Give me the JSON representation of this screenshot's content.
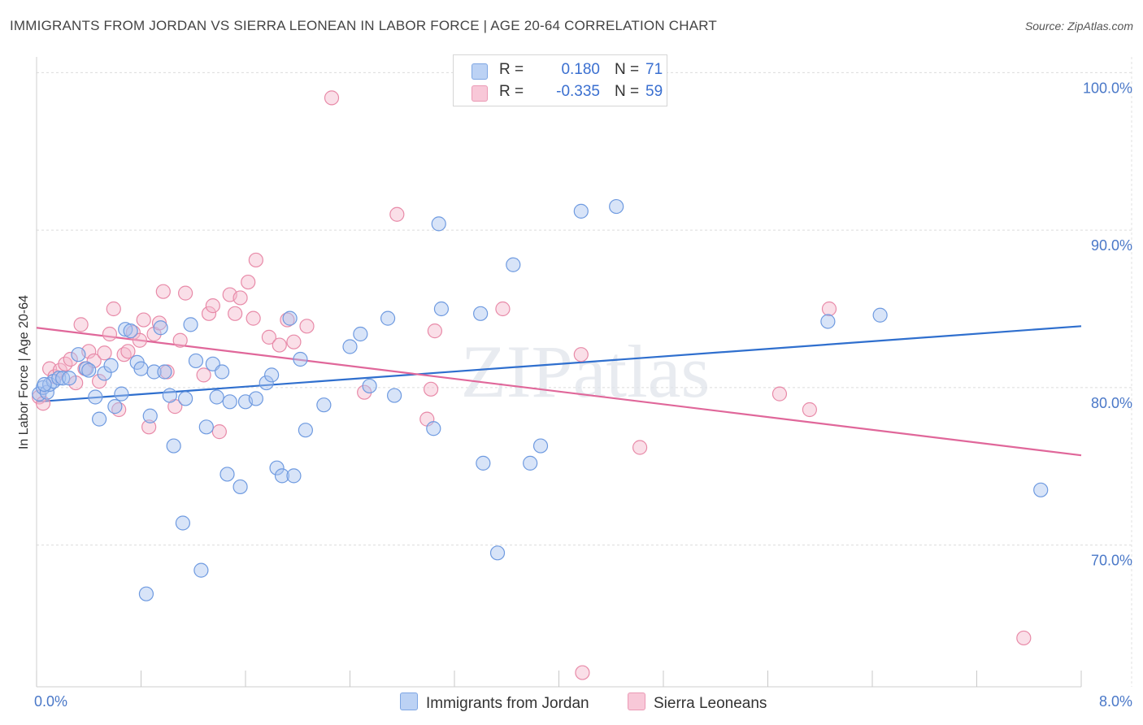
{
  "title": "IMMIGRANTS FROM JORDAN VS SIERRA LEONEAN IN LABOR FORCE | AGE 20-64 CORRELATION CHART",
  "source": "Source: ZipAtlas.com",
  "watermark": "ZIPatlas",
  "colors": {
    "blue_fill": "#a9c4ef",
    "blue_stroke": "#6e9ae0",
    "blue_line": "#2f6fce",
    "pink_fill": "#f5b8cc",
    "pink_stroke": "#e88aa8",
    "pink_line": "#e0679a",
    "tick_label": "#4a78c8"
  },
  "legend": {
    "rows": [
      {
        "r_label": "R =",
        "r_value": "0.180",
        "n_label": "N =",
        "n_value": "71"
      },
      {
        "r_label": "R =",
        "r_value": "-0.335",
        "n_label": "N =",
        "n_value": "59"
      }
    ]
  },
  "bottom_legend": {
    "series1": "Immigrants from Jordan",
    "series2": "Sierra Leoneans"
  },
  "chart_data": {
    "type": "scatter",
    "title": "IMMIGRANTS FROM JORDAN VS SIERRA LEONEAN IN LABOR FORCE | AGE 20-64 CORRELATION CHART",
    "xlabel": "",
    "ylabel": "In Labor Force | Age 20-64",
    "xlim": [
      0,
      8
    ],
    "ylim": [
      61,
      101
    ],
    "x_tick_labels": [
      "0.0%",
      "8.0%"
    ],
    "y_ticks": [
      70,
      80,
      90,
      100
    ],
    "y_tick_labels": [
      "70.0%",
      "80.0%",
      "90.0%",
      "100.0%"
    ],
    "grid": true,
    "legend_position": "top-center",
    "series": [
      {
        "name": "Immigrants from Jordan",
        "color": "#a9c4ef",
        "r": 0.18,
        "n": 71,
        "trend": {
          "x": [
            0,
            8
          ],
          "y": [
            79.1,
            83.9
          ]
        },
        "points": [
          {
            "x": 0.02,
            "y": 79.6
          },
          {
            "x": 0.05,
            "y": 80.0
          },
          {
            "x": 0.08,
            "y": 79.7
          },
          {
            "x": 0.1,
            "y": 80.2
          },
          {
            "x": 0.13,
            "y": 80.4
          },
          {
            "x": 0.17,
            "y": 80.6
          },
          {
            "x": 0.2,
            "y": 80.6
          },
          {
            "x": 0.25,
            "y": 80.6
          },
          {
            "x": 0.32,
            "y": 82.1
          },
          {
            "x": 0.38,
            "y": 81.2
          },
          {
            "x": 0.4,
            "y": 81.1
          },
          {
            "x": 0.45,
            "y": 79.4
          },
          {
            "x": 0.48,
            "y": 78.0
          },
          {
            "x": 0.52,
            "y": 80.9
          },
          {
            "x": 0.57,
            "y": 81.4
          },
          {
            "x": 0.6,
            "y": 78.8
          },
          {
            "x": 0.65,
            "y": 79.6
          },
          {
            "x": 0.68,
            "y": 83.7
          },
          {
            "x": 0.72,
            "y": 83.6
          },
          {
            "x": 0.77,
            "y": 81.6
          },
          {
            "x": 0.8,
            "y": 81.2
          },
          {
            "x": 0.84,
            "y": 66.9
          },
          {
            "x": 0.87,
            "y": 78.2
          },
          {
            "x": 0.9,
            "y": 81.0
          },
          {
            "x": 0.95,
            "y": 83.8
          },
          {
            "x": 0.98,
            "y": 81.0
          },
          {
            "x": 1.02,
            "y": 79.5
          },
          {
            "x": 1.05,
            "y": 76.3
          },
          {
            "x": 1.12,
            "y": 71.4
          },
          {
            "x": 1.14,
            "y": 79.3
          },
          {
            "x": 1.18,
            "y": 84.0
          },
          {
            "x": 1.22,
            "y": 81.7
          },
          {
            "x": 1.26,
            "y": 68.4
          },
          {
            "x": 1.3,
            "y": 77.5
          },
          {
            "x": 1.35,
            "y": 81.5
          },
          {
            "x": 1.38,
            "y": 79.4
          },
          {
            "x": 1.42,
            "y": 81.0
          },
          {
            "x": 1.46,
            "y": 74.5
          },
          {
            "x": 1.48,
            "y": 79.1
          },
          {
            "x": 1.56,
            "y": 73.7
          },
          {
            "x": 1.6,
            "y": 79.1
          },
          {
            "x": 1.68,
            "y": 79.3
          },
          {
            "x": 1.76,
            "y": 80.3
          },
          {
            "x": 1.8,
            "y": 80.8
          },
          {
            "x": 1.84,
            "y": 74.9
          },
          {
            "x": 1.88,
            "y": 74.4
          },
          {
            "x": 1.94,
            "y": 84.4
          },
          {
            "x": 1.97,
            "y": 74.4
          },
          {
            "x": 2.02,
            "y": 81.8
          },
          {
            "x": 2.06,
            "y": 77.3
          },
          {
            "x": 2.2,
            "y": 78.9
          },
          {
            "x": 2.4,
            "y": 82.6
          },
          {
            "x": 2.48,
            "y": 83.4
          },
          {
            "x": 2.55,
            "y": 80.1
          },
          {
            "x": 2.69,
            "y": 84.4
          },
          {
            "x": 2.74,
            "y": 79.5
          },
          {
            "x": 3.04,
            "y": 77.4
          },
          {
            "x": 3.08,
            "y": 90.4
          },
          {
            "x": 3.1,
            "y": 85.0
          },
          {
            "x": 3.4,
            "y": 84.7
          },
          {
            "x": 3.42,
            "y": 75.2
          },
          {
            "x": 3.53,
            "y": 69.5
          },
          {
            "x": 3.65,
            "y": 87.8
          },
          {
            "x": 3.78,
            "y": 75.2
          },
          {
            "x": 3.86,
            "y": 76.3
          },
          {
            "x": 4.17,
            "y": 91.2
          },
          {
            "x": 4.44,
            "y": 91.5
          },
          {
            "x": 6.06,
            "y": 84.2
          },
          {
            "x": 6.46,
            "y": 84.6
          },
          {
            "x": 7.69,
            "y": 73.5
          },
          {
            "x": 0.06,
            "y": 80.2
          }
        ]
      },
      {
        "name": "Sierra Leoneans",
        "color": "#f5b8cc",
        "r": -0.335,
        "n": 59,
        "trend": {
          "x": [
            0,
            8
          ],
          "y": [
            83.8,
            75.7
          ]
        },
        "points": [
          {
            "x": 0.02,
            "y": 79.4
          },
          {
            "x": 0.05,
            "y": 79.0
          },
          {
            "x": 0.1,
            "y": 81.2
          },
          {
            "x": 0.14,
            "y": 80.7
          },
          {
            "x": 0.18,
            "y": 81.1
          },
          {
            "x": 0.22,
            "y": 81.5
          },
          {
            "x": 0.26,
            "y": 81.8
          },
          {
            "x": 0.3,
            "y": 80.3
          },
          {
            "x": 0.34,
            "y": 84.0
          },
          {
            "x": 0.37,
            "y": 81.2
          },
          {
            "x": 0.4,
            "y": 82.3
          },
          {
            "x": 0.44,
            "y": 81.7
          },
          {
            "x": 0.48,
            "y": 80.4
          },
          {
            "x": 0.52,
            "y": 82.2
          },
          {
            "x": 0.56,
            "y": 83.4
          },
          {
            "x": 0.59,
            "y": 85.0
          },
          {
            "x": 0.63,
            "y": 78.6
          },
          {
            "x": 0.67,
            "y": 82.1
          },
          {
            "x": 0.7,
            "y": 82.3
          },
          {
            "x": 0.74,
            "y": 83.5
          },
          {
            "x": 0.79,
            "y": 83.0
          },
          {
            "x": 0.82,
            "y": 84.3
          },
          {
            "x": 0.86,
            "y": 77.5
          },
          {
            "x": 0.9,
            "y": 83.4
          },
          {
            "x": 0.94,
            "y": 84.1
          },
          {
            "x": 0.97,
            "y": 86.1
          },
          {
            "x": 1.0,
            "y": 81.0
          },
          {
            "x": 1.06,
            "y": 78.8
          },
          {
            "x": 1.1,
            "y": 83.0
          },
          {
            "x": 1.14,
            "y": 86.0
          },
          {
            "x": 1.28,
            "y": 80.8
          },
          {
            "x": 1.32,
            "y": 84.7
          },
          {
            "x": 1.35,
            "y": 85.2
          },
          {
            "x": 1.4,
            "y": 77.2
          },
          {
            "x": 1.48,
            "y": 85.9
          },
          {
            "x": 1.52,
            "y": 84.7
          },
          {
            "x": 1.56,
            "y": 85.7
          },
          {
            "x": 1.62,
            "y": 86.7
          },
          {
            "x": 1.66,
            "y": 84.4
          },
          {
            "x": 1.68,
            "y": 88.1
          },
          {
            "x": 1.78,
            "y": 83.2
          },
          {
            "x": 1.86,
            "y": 82.7
          },
          {
            "x": 1.92,
            "y": 84.3
          },
          {
            "x": 1.97,
            "y": 82.9
          },
          {
            "x": 2.07,
            "y": 83.9
          },
          {
            "x": 2.26,
            "y": 98.4
          },
          {
            "x": 2.51,
            "y": 79.7
          },
          {
            "x": 2.76,
            "y": 91.0
          },
          {
            "x": 2.99,
            "y": 78.0
          },
          {
            "x": 3.02,
            "y": 79.9
          },
          {
            "x": 3.05,
            "y": 83.6
          },
          {
            "x": 3.57,
            "y": 85.0
          },
          {
            "x": 4.17,
            "y": 82.1
          },
          {
            "x": 4.18,
            "y": 61.9
          },
          {
            "x": 4.62,
            "y": 76.2
          },
          {
            "x": 5.69,
            "y": 79.6
          },
          {
            "x": 5.92,
            "y": 78.6
          },
          {
            "x": 6.07,
            "y": 85.0
          },
          {
            "x": 7.56,
            "y": 64.1
          }
        ]
      }
    ]
  }
}
